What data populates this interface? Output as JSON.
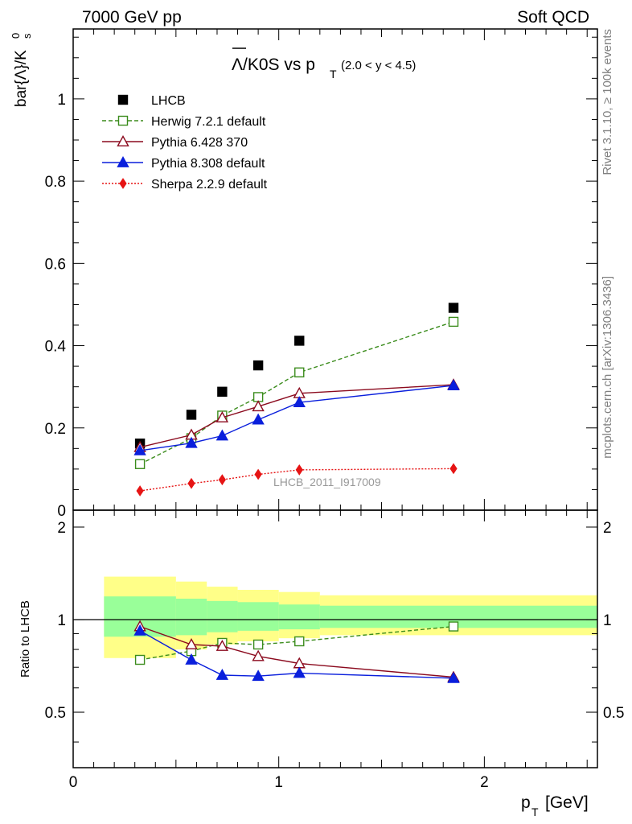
{
  "header": {
    "left": "7000 GeV pp",
    "right": "Soft QCD"
  },
  "side_labels": {
    "rivet": "Rivet 3.1.10, ≥ 100k events",
    "mcplots": "mcplots.cern.ch [arXiv:1306.3436]"
  },
  "chart_data": [
    {
      "type": "scatter",
      "panel": "main",
      "title_main": "Λ/K0S vs p",
      "title_sub": "T",
      "title_range": "(2.0 < y < 4.5)",
      "ylabel_main": "bar{Λ}/K",
      "ylabel_sup": "0",
      "ylabel_sub": "s",
      "analysis_tag": "LHCB_2011_I917009",
      "xlim": [
        0,
        2.55
      ],
      "ylim": [
        0,
        1.17
      ],
      "yticks": [
        {
          "v": 0,
          "label": "0"
        },
        {
          "v": 0.2,
          "label": "0.2"
        },
        {
          "v": 0.4,
          "label": "0.4"
        },
        {
          "v": 0.6,
          "label": "0.6"
        },
        {
          "v": 0.8,
          "label": "0.8"
        },
        {
          "v": 1.0,
          "label": "1"
        }
      ],
      "legend_position": "top-left",
      "series": [
        {
          "name": "LHCB",
          "color": "#000000",
          "marker": "square-filled",
          "line": "none",
          "x": [
            0.325,
            0.575,
            0.725,
            0.9,
            1.1,
            1.85
          ],
          "y": [
            0.162,
            0.232,
            0.288,
            0.352,
            0.412,
            0.492
          ]
        },
        {
          "name": "Herwig 7.2.1 default",
          "color": "#3b8c1c",
          "marker": "square-open",
          "line": "dashed",
          "x": [
            0.325,
            0.575,
            0.725,
            0.9,
            1.1,
            1.85
          ],
          "y": [
            0.112,
            0.175,
            0.23,
            0.275,
            0.335,
            0.458
          ]
        },
        {
          "name": "Pythia 6.428 370",
          "color": "#8b0a1e",
          "marker": "triangle-open",
          "line": "solid",
          "x": [
            0.325,
            0.575,
            0.725,
            0.9,
            1.1,
            1.85
          ],
          "y": [
            0.153,
            0.183,
            0.225,
            0.252,
            0.284,
            0.305
          ]
        },
        {
          "name": "Pythia 8.308 default",
          "color": "#0a1fdc",
          "marker": "triangle-filled",
          "line": "solid",
          "x": [
            0.325,
            0.575,
            0.725,
            0.9,
            1.1,
            1.85
          ],
          "y": [
            0.145,
            0.163,
            0.181,
            0.22,
            0.262,
            0.303
          ]
        },
        {
          "name": "Sherpa 2.2.9 default",
          "color": "#e61414",
          "marker": "diamond-filled",
          "line": "dotted",
          "x": [
            0.325,
            0.575,
            0.725,
            0.9,
            1.1,
            1.85
          ],
          "y": [
            0.047,
            0.065,
            0.074,
            0.087,
            0.098,
            0.101
          ]
        }
      ]
    },
    {
      "type": "scatter",
      "panel": "ratio",
      "ylabel": "Ratio to LHCB",
      "xlabel_main": "p",
      "xlabel_sub": "T",
      "xlabel_unit": "[GeV]",
      "xlim": [
        0,
        2.55
      ],
      "ylim": [
        0.33,
        2.27
      ],
      "xticks": [
        {
          "v": 0,
          "label": "0"
        },
        {
          "v": 1,
          "label": "1"
        },
        {
          "v": 2,
          "label": "2"
        }
      ],
      "yticks": [
        {
          "v": 0.5,
          "label": "0.5"
        },
        {
          "v": 1,
          "label": "1"
        },
        {
          "v": 2,
          "label": "2"
        }
      ],
      "uncertainty_bands": {
        "inner_color": "#99ff99",
        "outer_color": "#ffff88",
        "bins": [
          {
            "x0": 0.15,
            "x1": 0.5,
            "in_lo": 0.88,
            "in_hi": 1.19,
            "out_lo": 0.75,
            "out_hi": 1.38
          },
          {
            "x0": 0.5,
            "x1": 0.65,
            "in_lo": 0.89,
            "in_hi": 1.17,
            "out_lo": 0.8,
            "out_hi": 1.33
          },
          {
            "x0": 0.65,
            "x1": 0.8,
            "in_lo": 0.91,
            "in_hi": 1.15,
            "out_lo": 0.83,
            "out_hi": 1.28
          },
          {
            "x0": 0.8,
            "x1": 1.0,
            "in_lo": 0.92,
            "in_hi": 1.14,
            "out_lo": 0.85,
            "out_hi": 1.25
          },
          {
            "x0": 1.0,
            "x1": 1.2,
            "in_lo": 0.93,
            "in_hi": 1.12,
            "out_lo": 0.87,
            "out_hi": 1.23
          },
          {
            "x0": 1.2,
            "x1": 2.55,
            "in_lo": 0.94,
            "in_hi": 1.11,
            "out_lo": 0.89,
            "out_hi": 1.2
          }
        ]
      },
      "series": [
        {
          "name": "Herwig 7.2.1 default",
          "color": "#3b8c1c",
          "marker": "square-open",
          "line": "dashed",
          "x": [
            0.325,
            0.575,
            0.725,
            0.9,
            1.1,
            1.85
          ],
          "y": [
            0.74,
            0.79,
            0.84,
            0.83,
            0.85,
            0.95
          ]
        },
        {
          "name": "Pythia 6.428 370",
          "color": "#8b0a1e",
          "marker": "triangle-open",
          "line": "solid",
          "x": [
            0.325,
            0.575,
            0.725,
            0.9,
            1.1,
            1.85
          ],
          "y": [
            0.95,
            0.83,
            0.82,
            0.76,
            0.72,
            0.65
          ]
        },
        {
          "name": "Pythia 8.308 default",
          "color": "#0a1fdc",
          "marker": "triangle-filled",
          "line": "solid",
          "x": [
            0.325,
            0.575,
            0.725,
            0.9,
            1.1,
            1.85
          ],
          "y": [
            0.92,
            0.74,
            0.66,
            0.655,
            0.67,
            0.645
          ]
        }
      ]
    }
  ]
}
